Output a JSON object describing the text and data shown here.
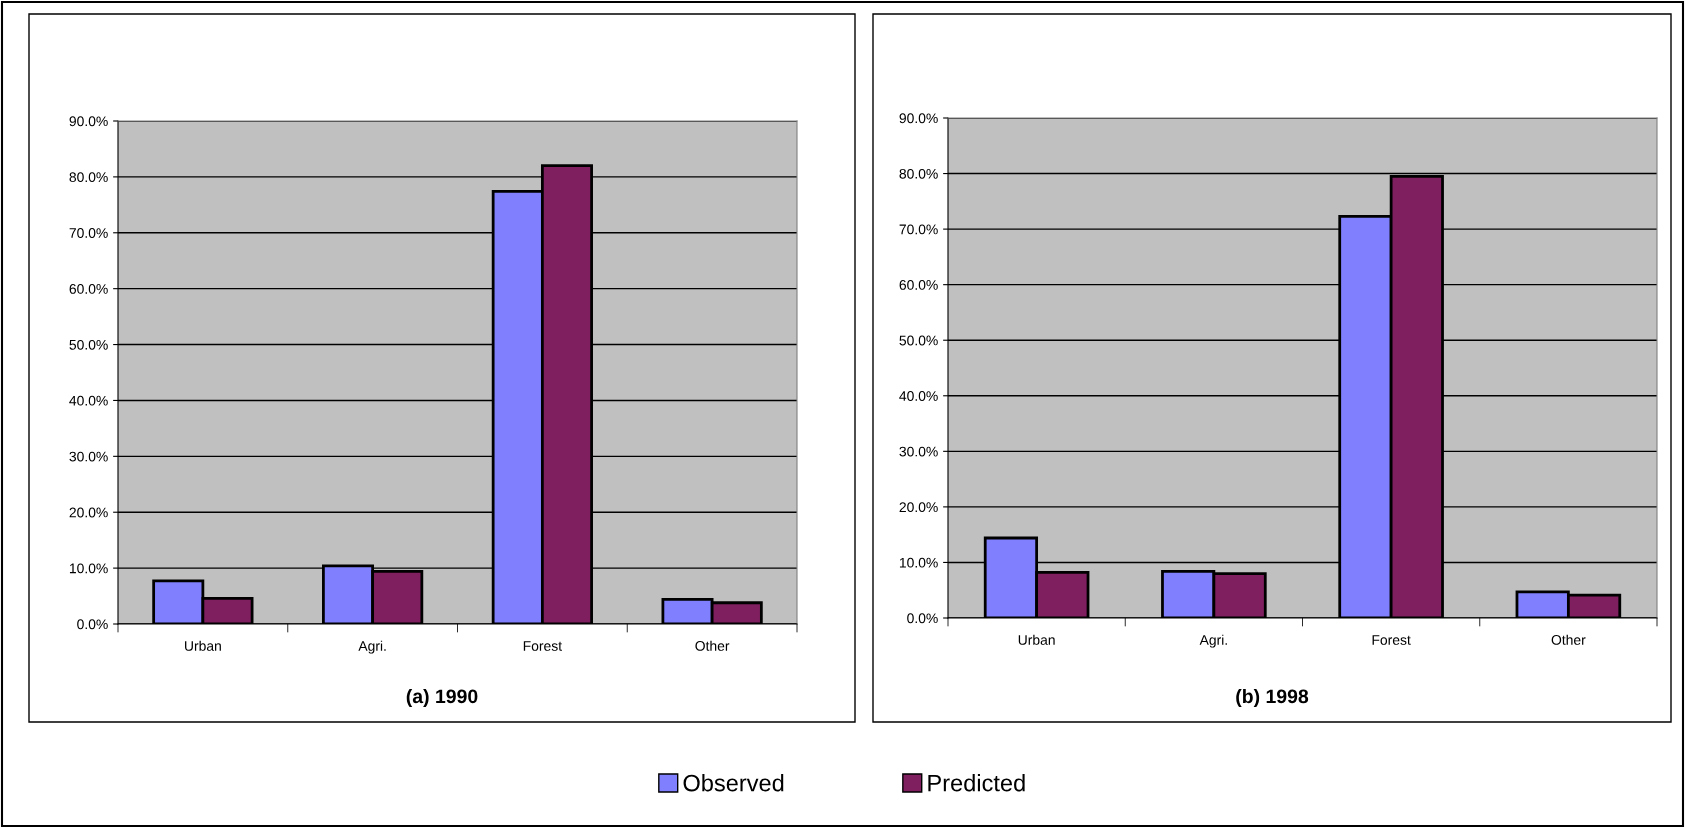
{
  "chart_data": [
    {
      "type": "bar",
      "title": "(a) 1990",
      "categories": [
        "Urban",
        "Agri.",
        "Forest",
        "Other"
      ],
      "series": [
        {
          "name": "Observed",
          "color": "#8080ff",
          "values": [
            7.7,
            10.4,
            77.4,
            4.4
          ]
        },
        {
          "name": "Predicted",
          "color": "#7f1f5f",
          "values": [
            4.6,
            9.4,
            82.0,
            3.8
          ]
        }
      ],
      "ylim": [
        0,
        90
      ],
      "yticks": [
        {
          "value": 0,
          "label": "0.0%"
        },
        {
          "value": 10,
          "label": "10.0%"
        },
        {
          "value": 20,
          "label": "20.0%"
        },
        {
          "value": 30,
          "label": "30.0%"
        },
        {
          "value": 40,
          "label": "40.0%"
        },
        {
          "value": 50,
          "label": "50.0%"
        },
        {
          "value": 60,
          "label": "60.0%"
        },
        {
          "value": 70,
          "label": "70.0%"
        },
        {
          "value": 80,
          "label": "80.0%"
        },
        {
          "value": 90,
          "label": "90.0%"
        }
      ],
      "grid": "y",
      "legend": "bottom"
    },
    {
      "type": "bar",
      "title": "(b) 1998",
      "categories": [
        "Urban",
        "Agri.",
        "Forest",
        "Other"
      ],
      "series": [
        {
          "color": "#8080ff",
          "values": [
            14.4,
            8.4,
            72.3,
            4.7
          ]
        },
        {
          "color": "#7f1f5f",
          "values": [
            8.2,
            8.0,
            79.5,
            4.1
          ]
        }
      ],
      "ylim": [
        0,
        90
      ],
      "yticks": [
        {
          "value": 0,
          "label": "0.0%"
        },
        {
          "value": 10,
          "label": "10.0%"
        },
        {
          "value": 20,
          "label": "20.0%"
        },
        {
          "value": 30,
          "label": "30.0%"
        },
        {
          "value": 40,
          "label": "40.0%"
        },
        {
          "value": 50,
          "label": "50.0%"
        },
        {
          "value": 60,
          "label": "60.0%"
        },
        {
          "value": 70,
          "label": "70.0%"
        },
        {
          "value": 80,
          "label": "80.0%"
        },
        {
          "value": 90,
          "label": "90.0%"
        }
      ],
      "grid": "y"
    }
  ]
}
